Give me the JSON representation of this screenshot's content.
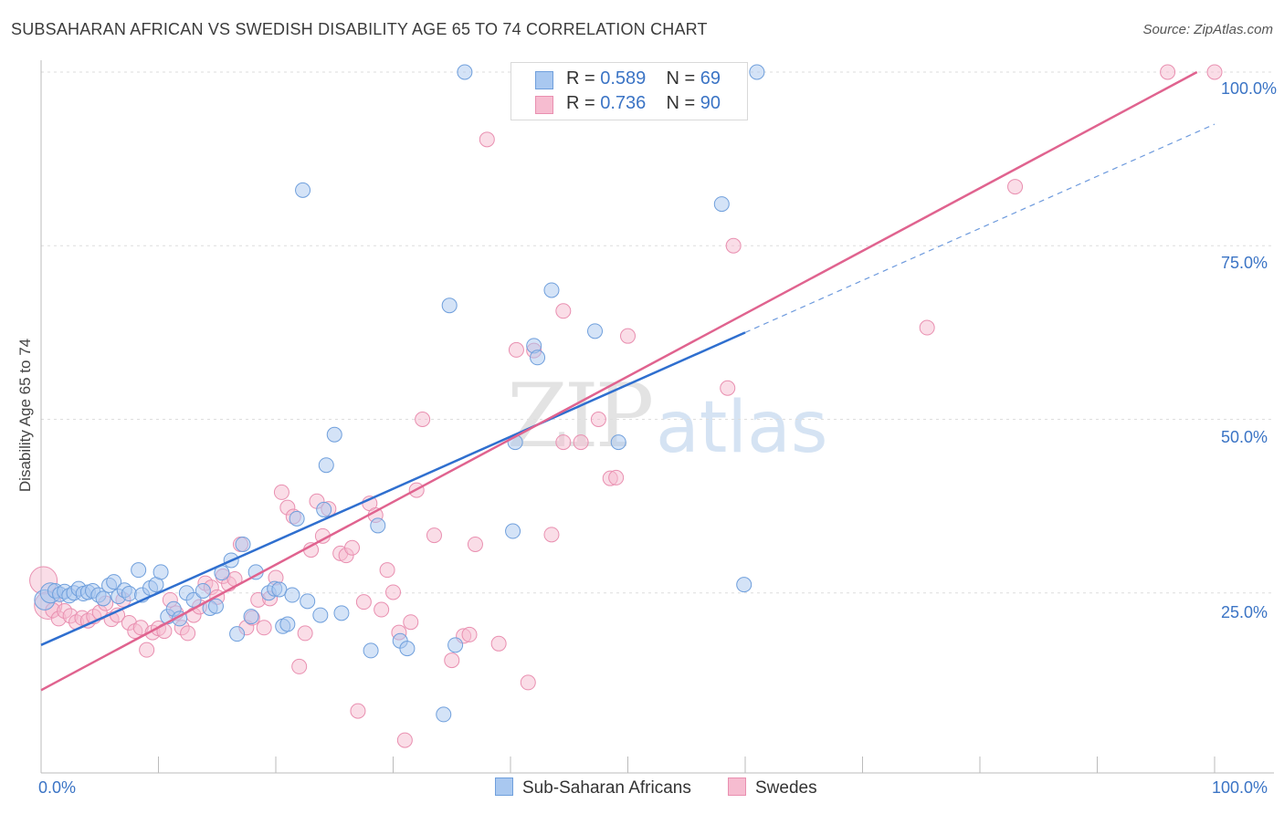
{
  "header": {
    "title": "SUBSAHARAN AFRICAN VS SWEDISH DISABILITY AGE 65 TO 74 CORRELATION CHART",
    "source": "Source: ZipAtlas.com"
  },
  "watermark": {
    "zip": "ZIP",
    "atlas": "atlas"
  },
  "legend": {
    "blue": {
      "r_label": "R =",
      "r_value": "0.589",
      "n_label": "N =",
      "n_value": "69"
    },
    "pink": {
      "r_label": "R =",
      "r_value": "0.736",
      "n_label": "N =",
      "n_value": "90"
    }
  },
  "bottom_legend": {
    "blue": "Sub-Saharan Africans",
    "pink": "Swedes"
  },
  "colors": {
    "blue_fill": "#a9c8f0",
    "blue_stroke": "#6f9fdc",
    "blue_line": "#2f6fcf",
    "pink_fill": "#f6bcd0",
    "pink_stroke": "#e98fb0",
    "pink_line": "#e0638f",
    "grid": "#dddddd",
    "tick_text": "#3b74c5"
  },
  "chart_data": {
    "type": "scatter",
    "title": "SUBSAHARAN AFRICAN VS SWEDISH DISABILITY AGE 65 TO 74 CORRELATION CHART",
    "xlabel": "",
    "ylabel": "Disability Age 65 to 74",
    "xlim": [
      0,
      100
    ],
    "ylim": [
      0,
      100
    ],
    "x_tick_labels": [
      "0.0%",
      "100.0%"
    ],
    "y_tick_labels": [
      "25.0%",
      "50.0%",
      "75.0%",
      "100.0%"
    ],
    "y_ticks": [
      25,
      50,
      75,
      100
    ],
    "grid": true,
    "legend_position": "top-center",
    "series": [
      {
        "name": "Sub-Saharan Africans",
        "color": "#a9c8f0",
        "r": "0.589",
        "n": "69",
        "trend": {
          "x0": 0,
          "y0": 17.5,
          "x1": 60,
          "y1": 62.5,
          "dashed_to_x": 100,
          "dashed_to_y": 92.5
        },
        "points": [
          [
            0.3,
            24.0
          ],
          [
            0.8,
            25.0
          ],
          [
            1.2,
            25.3
          ],
          [
            1.6,
            24.8
          ],
          [
            2.0,
            25.2
          ],
          [
            2.4,
            24.6
          ],
          [
            2.8,
            25.0
          ],
          [
            3.2,
            25.6
          ],
          [
            3.6,
            24.9
          ],
          [
            4.0,
            25.1
          ],
          [
            4.4,
            25.3
          ],
          [
            4.9,
            24.7
          ],
          [
            5.3,
            24.2
          ],
          [
            5.8,
            26.1
          ],
          [
            6.2,
            26.6
          ],
          [
            6.6,
            24.5
          ],
          [
            7.1,
            25.4
          ],
          [
            7.5,
            24.9
          ],
          [
            8.3,
            28.3
          ],
          [
            8.6,
            24.7
          ],
          [
            9.3,
            25.7
          ],
          [
            9.8,
            26.2
          ],
          [
            10.2,
            28.0
          ],
          [
            10.8,
            21.6
          ],
          [
            11.3,
            22.7
          ],
          [
            11.8,
            21.3
          ],
          [
            12.4,
            25.0
          ],
          [
            13.0,
            24.0
          ],
          [
            13.8,
            25.3
          ],
          [
            14.4,
            22.8
          ],
          [
            14.9,
            23.1
          ],
          [
            15.4,
            27.9
          ],
          [
            16.2,
            29.7
          ],
          [
            16.7,
            19.1
          ],
          [
            17.2,
            32.0
          ],
          [
            17.9,
            21.6
          ],
          [
            18.3,
            28.0
          ],
          [
            19.4,
            25.0
          ],
          [
            19.9,
            25.6
          ],
          [
            20.3,
            25.5
          ],
          [
            20.6,
            20.2
          ],
          [
            21.0,
            20.5
          ],
          [
            21.4,
            24.7
          ],
          [
            21.8,
            35.7
          ],
          [
            22.3,
            83.0
          ],
          [
            22.7,
            23.8
          ],
          [
            23.8,
            21.8
          ],
          [
            24.1,
            37.0
          ],
          [
            25.0,
            47.8
          ],
          [
            25.6,
            22.1
          ],
          [
            24.3,
            43.4
          ],
          [
            28.1,
            16.7
          ],
          [
            28.7,
            34.7
          ],
          [
            30.6,
            18.1
          ],
          [
            31.2,
            17.0
          ],
          [
            34.3,
            7.5
          ],
          [
            34.8,
            66.4
          ],
          [
            35.3,
            17.5
          ],
          [
            36.1,
            100.0
          ],
          [
            40.2,
            33.9
          ],
          [
            40.4,
            46.7
          ],
          [
            42.0,
            60.6
          ],
          [
            42.3,
            58.9
          ],
          [
            43.5,
            68.6
          ],
          [
            47.2,
            62.7
          ],
          [
            49.2,
            46.7
          ],
          [
            58.0,
            81.0
          ],
          [
            59.9,
            26.2
          ],
          [
            61.0,
            100.0
          ]
        ]
      },
      {
        "name": "Swedes",
        "color": "#f6bcd0",
        "r": "0.736",
        "n": "90",
        "trend": {
          "x0": 0,
          "y0": 11.0,
          "x1": 98.5,
          "y1": 100.0
        },
        "points": [
          [
            0.2,
            26.8
          ],
          [
            0.6,
            23.2
          ],
          [
            1.0,
            22.5
          ],
          [
            1.5,
            21.3
          ],
          [
            2.0,
            22.4
          ],
          [
            2.5,
            21.7
          ],
          [
            3.0,
            20.8
          ],
          [
            3.5,
            21.4
          ],
          [
            4.0,
            21.0
          ],
          [
            4.5,
            21.6
          ],
          [
            5.0,
            22.2
          ],
          [
            5.5,
            23.5
          ],
          [
            6.0,
            21.2
          ],
          [
            6.5,
            21.8
          ],
          [
            7.0,
            24.0
          ],
          [
            7.5,
            20.7
          ],
          [
            8.0,
            19.5
          ],
          [
            8.5,
            20.0
          ],
          [
            9.0,
            16.8
          ],
          [
            9.5,
            19.3
          ],
          [
            10.0,
            19.9
          ],
          [
            10.5,
            19.5
          ],
          [
            11.0,
            24.0
          ],
          [
            11.5,
            22.1
          ],
          [
            12.0,
            20.0
          ],
          [
            12.5,
            19.2
          ],
          [
            13.0,
            21.8
          ],
          [
            13.5,
            23.0
          ],
          [
            14.0,
            26.4
          ],
          [
            14.5,
            25.8
          ],
          [
            15.0,
            24.4
          ],
          [
            15.5,
            27.4
          ],
          [
            16.0,
            26.3
          ],
          [
            16.5,
            27.0
          ],
          [
            17.0,
            32.0
          ],
          [
            17.5,
            20.0
          ],
          [
            18.0,
            21.4
          ],
          [
            18.5,
            24.0
          ],
          [
            19.0,
            20.0
          ],
          [
            19.5,
            24.2
          ],
          [
            20.0,
            27.2
          ],
          [
            20.5,
            39.5
          ],
          [
            21.0,
            37.3
          ],
          [
            21.5,
            36.0
          ],
          [
            22.0,
            14.4
          ],
          [
            22.5,
            19.2
          ],
          [
            23.0,
            31.2
          ],
          [
            23.5,
            38.2
          ],
          [
            24.0,
            33.2
          ],
          [
            24.5,
            37.1
          ],
          [
            25.5,
            30.7
          ],
          [
            26.0,
            30.4
          ],
          [
            26.5,
            31.5
          ],
          [
            27.0,
            8.0
          ],
          [
            27.5,
            23.7
          ],
          [
            28.0,
            37.9
          ],
          [
            28.5,
            36.2
          ],
          [
            29.0,
            22.6
          ],
          [
            29.5,
            28.3
          ],
          [
            30.0,
            25.1
          ],
          [
            30.5,
            19.3
          ],
          [
            31.0,
            3.8
          ],
          [
            31.5,
            20.8
          ],
          [
            32.0,
            39.8
          ],
          [
            32.5,
            50.0
          ],
          [
            33.5,
            33.3
          ],
          [
            35.0,
            15.3
          ],
          [
            36.0,
            18.8
          ],
          [
            36.5,
            19.0
          ],
          [
            37.0,
            32.0
          ],
          [
            38.0,
            90.3
          ],
          [
            39.0,
            17.7
          ],
          [
            40.5,
            60.0
          ],
          [
            41.5,
            12.1
          ],
          [
            43.5,
            33.4
          ],
          [
            44.5,
            65.6
          ],
          [
            46.0,
            46.7
          ],
          [
            47.5,
            50.0
          ],
          [
            48.5,
            41.5
          ],
          [
            50.0,
            62.0
          ],
          [
            54.5,
            100.0
          ],
          [
            58.5,
            54.5
          ],
          [
            59.0,
            75.0
          ],
          [
            75.5,
            63.2
          ],
          [
            83.0,
            83.5
          ],
          [
            96.0,
            100.0
          ],
          [
            100.0,
            100.0
          ],
          [
            42.0,
            59.9
          ],
          [
            44.5,
            46.7
          ],
          [
            49.0,
            41.6
          ]
        ]
      }
    ]
  }
}
